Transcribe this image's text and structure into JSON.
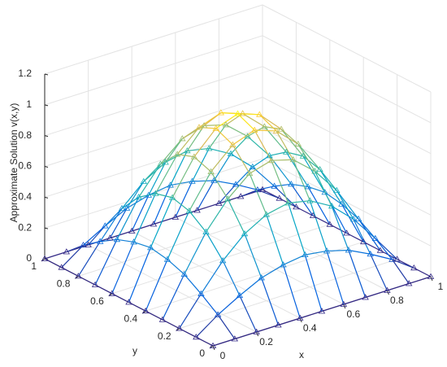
{
  "chart_data": {
    "type": "surface",
    "zlabel": "Approximate Solution v(x,y)",
    "xlabel": "x",
    "ylabel": "y",
    "x": [
      0,
      0.1,
      0.2,
      0.3,
      0.4,
      0.5,
      0.6,
      0.7,
      0.8,
      0.9,
      1
    ],
    "y": [
      0,
      0.1,
      0.2,
      0.3,
      0.4,
      0.5,
      0.6,
      0.7,
      0.8,
      0.9,
      1
    ],
    "z": [
      [
        0,
        0,
        0,
        0,
        0,
        0,
        0,
        0,
        0,
        0,
        0
      ],
      [
        0,
        0.1,
        0.18,
        0.25,
        0.29,
        0.31,
        0.29,
        0.25,
        0.18,
        0.1,
        0
      ],
      [
        0,
        0.18,
        0.35,
        0.48,
        0.56,
        0.59,
        0.56,
        0.48,
        0.35,
        0.18,
        0
      ],
      [
        0,
        0.25,
        0.48,
        0.65,
        0.77,
        0.81,
        0.77,
        0.65,
        0.48,
        0.25,
        0
      ],
      [
        0,
        0.29,
        0.56,
        0.77,
        0.9,
        0.95,
        0.9,
        0.77,
        0.56,
        0.29,
        0
      ],
      [
        0,
        0.31,
        0.59,
        0.81,
        0.95,
        1,
        0.95,
        0.81,
        0.59,
        0.31,
        0
      ],
      [
        0,
        0.29,
        0.56,
        0.77,
        0.9,
        0.95,
        0.9,
        0.77,
        0.56,
        0.29,
        0
      ],
      [
        0,
        0.25,
        0.48,
        0.65,
        0.77,
        0.81,
        0.77,
        0.65,
        0.48,
        0.25,
        0
      ],
      [
        0,
        0.18,
        0.35,
        0.48,
        0.56,
        0.59,
        0.56,
        0.48,
        0.35,
        0.18,
        0
      ],
      [
        0,
        0.1,
        0.18,
        0.25,
        0.29,
        0.31,
        0.29,
        0.25,
        0.18,
        0.1,
        0
      ],
      [
        0,
        0,
        0,
        0,
        0,
        0,
        0,
        0,
        0,
        0,
        0
      ]
    ],
    "xlim": [
      0,
      1
    ],
    "ylim": [
      0,
      1
    ],
    "zlim": [
      0,
      1.2
    ],
    "xticks": [
      0,
      0.2,
      0.4,
      0.6,
      0.8,
      1
    ],
    "yticks": [
      0,
      0.2,
      0.4,
      0.6,
      0.8,
      1
    ],
    "zticks": [
      0,
      0.2,
      0.4,
      0.6,
      0.8,
      1,
      1.2
    ],
    "grid": true,
    "colormap": "parula"
  }
}
